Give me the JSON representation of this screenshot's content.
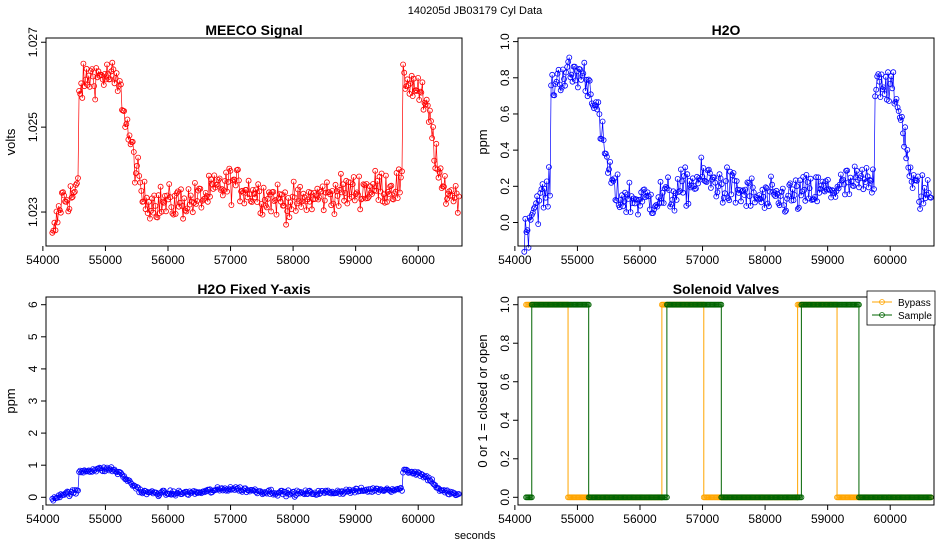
{
  "figure": {
    "suptitle": "140205d    JB03179   Cyl Data",
    "xlabel": "seconds"
  },
  "chart_data": [
    {
      "type": "line",
      "title": "MEECO Signal",
      "ylabel": "volts",
      "xlabel": "seconds",
      "xlim": [
        54050,
        60700
      ],
      "ylim": [
        1.0222,
        1.0271
      ],
      "xticks": [
        54000,
        55000,
        56000,
        57000,
        58000,
        59000,
        60000
      ],
      "yticks": [
        1.023,
        1.025,
        1.027
      ],
      "ytick_labels": [
        "1.023",
        "1.025",
        "1.027"
      ],
      "color": "#ff0000",
      "profile": [
        [
          54150,
          1.0223
        ],
        [
          54300,
          1.0233
        ],
        [
          54500,
          1.0234
        ],
        [
          54560,
          1.0235
        ],
        [
          54580,
          1.0259
        ],
        [
          54750,
          1.0262
        ],
        [
          55100,
          1.0262
        ],
        [
          55250,
          1.0258
        ],
        [
          55400,
          1.0246
        ],
        [
          55600,
          1.0233
        ],
        [
          56000,
          1.0232
        ],
        [
          56500,
          1.0233
        ],
        [
          57000,
          1.0237
        ],
        [
          57500,
          1.0234
        ],
        [
          58000,
          1.0232
        ],
        [
          58500,
          1.0234
        ],
        [
          59000,
          1.0235
        ],
        [
          59500,
          1.0236
        ],
        [
          59740,
          1.0236
        ],
        [
          59760,
          1.0262
        ],
        [
          60000,
          1.0259
        ],
        [
          60200,
          1.0251
        ],
        [
          60350,
          1.0236
        ],
        [
          60600,
          1.0234
        ]
      ],
      "noise": 0.0004
    },
    {
      "type": "line",
      "title": "H2O",
      "ylabel": "ppm",
      "xlabel": "seconds",
      "xlim": [
        54050,
        60700
      ],
      "ylim": [
        -0.13,
        1.02
      ],
      "xticks": [
        54000,
        55000,
        56000,
        57000,
        58000,
        59000,
        60000
      ],
      "yticks": [
        0.0,
        0.2,
        0.4,
        0.6,
        0.8,
        1.0
      ],
      "ytick_labels": [
        "0.0",
        "0.2",
        "0.4",
        "0.6",
        "0.8",
        "1.0"
      ],
      "color": "#0000ff",
      "profile": [
        [
          54150,
          -0.1
        ],
        [
          54300,
          0.1
        ],
        [
          54500,
          0.15
        ],
        [
          54560,
          0.18
        ],
        [
          54580,
          0.75
        ],
        [
          54750,
          0.82
        ],
        [
          55100,
          0.82
        ],
        [
          55250,
          0.72
        ],
        [
          55400,
          0.45
        ],
        [
          55600,
          0.15
        ],
        [
          56000,
          0.12
        ],
        [
          56500,
          0.15
        ],
        [
          57000,
          0.25
        ],
        [
          57500,
          0.18
        ],
        [
          58000,
          0.12
        ],
        [
          58500,
          0.15
        ],
        [
          59000,
          0.18
        ],
        [
          59500,
          0.22
        ],
        [
          59740,
          0.22
        ],
        [
          59760,
          0.82
        ],
        [
          60000,
          0.75
        ],
        [
          60200,
          0.55
        ],
        [
          60350,
          0.2
        ],
        [
          60600,
          0.15
        ]
      ],
      "noise": 0.1
    },
    {
      "type": "line",
      "title": "H2O Fixed Y-axis",
      "ylabel": "ppm",
      "xlabel": "seconds",
      "xlim": [
        54050,
        60700
      ],
      "ylim": [
        -0.24,
        6.24
      ],
      "xticks": [
        54000,
        55000,
        56000,
        57000,
        58000,
        59000,
        60000
      ],
      "yticks": [
        0,
        1,
        2,
        3,
        4,
        5,
        6
      ],
      "ytick_labels": [
        "0",
        "1",
        "2",
        "3",
        "4",
        "5",
        "6"
      ],
      "color": "#0000ff",
      "profile": [
        [
          54150,
          -0.05
        ],
        [
          54300,
          0.1
        ],
        [
          54500,
          0.15
        ],
        [
          54560,
          0.18
        ],
        [
          54580,
          0.8
        ],
        [
          54750,
          0.85
        ],
        [
          55100,
          0.88
        ],
        [
          55250,
          0.72
        ],
        [
          55400,
          0.45
        ],
        [
          55600,
          0.15
        ],
        [
          56000,
          0.12
        ],
        [
          56500,
          0.15
        ],
        [
          57000,
          0.28
        ],
        [
          57500,
          0.18
        ],
        [
          58000,
          0.12
        ],
        [
          58500,
          0.15
        ],
        [
          59000,
          0.2
        ],
        [
          59500,
          0.25
        ],
        [
          59740,
          0.25
        ],
        [
          59760,
          0.85
        ],
        [
          60000,
          0.75
        ],
        [
          60200,
          0.55
        ],
        [
          60350,
          0.2
        ],
        [
          60600,
          0.1
        ]
      ],
      "noise": 0.08
    },
    {
      "type": "line",
      "title": "Solenoid Valves",
      "ylabel": "0 or 1 = closed or open",
      "xlabel": "seconds",
      "xlim": [
        54050,
        60700
      ],
      "ylim": [
        -0.04,
        1.04
      ],
      "xticks": [
        54000,
        55000,
        56000,
        57000,
        58000,
        59000,
        60000
      ],
      "yticks": [
        0.0,
        0.2,
        0.4,
        0.6,
        0.8,
        1.0
      ],
      "ytick_labels": [
        "0.0",
        "0.2",
        "0.4",
        "0.6",
        "0.8",
        "1.0"
      ],
      "legend": {
        "position": "top-right",
        "entries": [
          "Bypass",
          "Sample"
        ]
      },
      "series": [
        {
          "name": "Bypass",
          "color": "#ffa500",
          "steps": [
            [
              54180,
              1
            ],
            [
              54850,
              0
            ],
            [
              56350,
              1
            ],
            [
              57020,
              0
            ],
            [
              58520,
              1
            ],
            [
              59150,
              0
            ],
            [
              60650,
              0
            ]
          ]
        },
        {
          "name": "Sample",
          "color": "#006400",
          "steps": [
            [
              54180,
              0
            ],
            [
              54270,
              1
            ],
            [
              55180,
              0
            ],
            [
              56350,
              0
            ],
            [
              56430,
              1
            ],
            [
              57300,
              0
            ],
            [
              58520,
              0
            ],
            [
              58580,
              1
            ],
            [
              59500,
              0
            ],
            [
              60650,
              0
            ]
          ]
        }
      ]
    }
  ]
}
